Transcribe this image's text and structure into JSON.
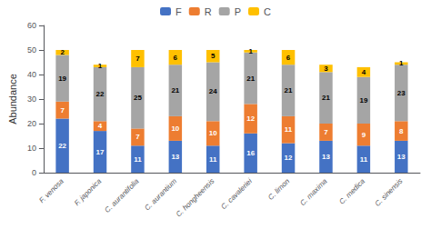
{
  "chart_data": {
    "type": "bar",
    "stacked": true,
    "data_labels": true,
    "grid": false,
    "legend": "top",
    "ylabel": "Abundance",
    "categories": [
      "F. venosa",
      "F. japonica",
      "C. aurantifolia",
      "C. aurantium",
      "C. hongheensis",
      "C. cavaleriei",
      "C. limon",
      "C. maxima",
      "C. medica",
      "C. sinensis"
    ],
    "series": [
      {
        "name": "F",
        "color": "#4472c4",
        "values": [
          22,
          17,
          11,
          13,
          11,
          16,
          12,
          13,
          11,
          13
        ]
      },
      {
        "name": "R",
        "color": "#ed7d31",
        "values": [
          7,
          4,
          7,
          10,
          10,
          12,
          11,
          7,
          9,
          8
        ]
      },
      {
        "name": "P",
        "color": "#a5a5a5",
        "values": [
          19,
          22,
          25,
          21,
          24,
          21,
          21,
          21,
          19,
          23
        ]
      },
      {
        "name": "C",
        "color": "#ffc000",
        "values": [
          2,
          1,
          7,
          6,
          5,
          1,
          6,
          3,
          4,
          1
        ]
      }
    ],
    "ylim": [
      0,
      60
    ],
    "yticks": [
      0,
      10,
      20,
      30,
      40,
      50,
      60
    ]
  }
}
